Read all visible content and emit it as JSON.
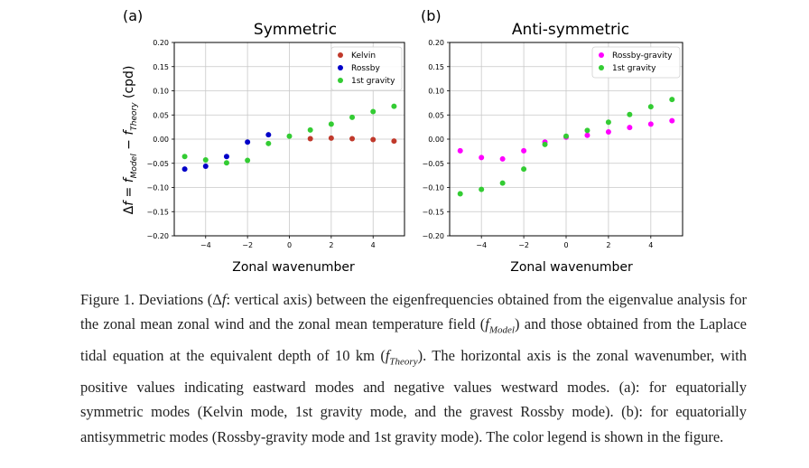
{
  "chart_data": [
    {
      "type": "scatter",
      "panel": "(a)",
      "title": "Symmetric",
      "xlabel": "Zonal wavenumber",
      "ylabel": "Δf = f_Model − f_Theory (cpd)",
      "xlim": [
        -5.5,
        5.5
      ],
      "ylim": [
        -0.2,
        0.2
      ],
      "xticks": [
        -4,
        -2,
        0,
        2,
        4
      ],
      "yticks": [
        0.2,
        0.15,
        0.1,
        0.05,
        0.0,
        -0.05,
        -0.1,
        -0.15,
        -0.2
      ],
      "ytick_labels": [
        "0.20",
        "0.15",
        "0.10",
        "0.05",
        "0.00",
        "−0.05",
        "−0.10",
        "−0.15",
        "−0.20"
      ],
      "grid": true,
      "legend_position": "top-right",
      "series": [
        {
          "name": "Kelvin",
          "color": "#c0392b",
          "x": [
            1,
            2,
            3,
            4,
            5
          ],
          "y": [
            0.001,
            0.002,
            0.001,
            -0.001,
            -0.004
          ]
        },
        {
          "name": "Rossby",
          "color": "#0000c8",
          "x": [
            -5,
            -4,
            -3,
            -2,
            -1
          ],
          "y": [
            -0.062,
            -0.056,
            -0.036,
            -0.006,
            0.009
          ]
        },
        {
          "name": "1st gravity",
          "color": "#33cc33",
          "x": [
            -5,
            -4,
            -3,
            -2,
            -1,
            0,
            1,
            2,
            3,
            4,
            5
          ],
          "y": [
            -0.036,
            -0.043,
            -0.049,
            -0.044,
            -0.009,
            0.006,
            0.019,
            0.031,
            0.045,
            0.057,
            0.068
          ]
        }
      ]
    },
    {
      "type": "scatter",
      "panel": "(b)",
      "title": "Anti-symmetric",
      "xlabel": "Zonal wavenumber",
      "xlim": [
        -5.5,
        5.5
      ],
      "ylim": [
        -0.2,
        0.2
      ],
      "xticks": [
        -4,
        -2,
        0,
        2,
        4
      ],
      "yticks": [
        0.2,
        0.15,
        0.1,
        0.05,
        0.0,
        -0.05,
        -0.1,
        -0.15,
        -0.2
      ],
      "ytick_labels": [
        "0.20",
        "0.15",
        "0.10",
        "0.05",
        "0.00",
        "−0.05",
        "−0.10",
        "−0.15",
        "−0.20"
      ],
      "grid": true,
      "legend_position": "top-right",
      "series": [
        {
          "name": "Rossby-gravity",
          "color": "#ff00ff",
          "x": [
            -5,
            -4,
            -3,
            -2,
            -1,
            0,
            1,
            2,
            3,
            4,
            5
          ],
          "y": [
            -0.024,
            -0.038,
            -0.041,
            -0.024,
            -0.006,
            0.004,
            0.008,
            0.015,
            0.024,
            0.031,
            0.038
          ]
        },
        {
          "name": "1st gravity",
          "color": "#33cc33",
          "x": [
            -5,
            -4,
            -3,
            -2,
            -1,
            0,
            1,
            2,
            3,
            4,
            5
          ],
          "y": [
            -0.113,
            -0.104,
            -0.091,
            -0.062,
            -0.011,
            0.006,
            0.018,
            0.035,
            0.051,
            0.067,
            0.082
          ]
        }
      ]
    }
  ],
  "caption": {
    "prefix": "Figure 1. Deviations (Δ",
    "f1": "f",
    "seg1": ": vertical axis) between the eigenfrequencies obtained from the eigenvalue analysis for the zonal mean zonal wind and the zonal mean temperature field (",
    "f2": "f",
    "sub_model": "Model",
    "seg2": ") and those obtained from the Laplace tidal equation at the equivalent depth of 10 km (",
    "f3": "f",
    "sub_theory": "Theory",
    "seg3": "). The horizontal axis is the zonal wavenumber, with positive values indicating eastward modes and negative values westward modes. (a): for equatorially symmetric modes (Kelvin mode, 1st gravity mode, and the gravest Rossby mode). (b): for equatorially antisymmetric modes (Rossby-gravity mode and 1st gravity mode). The color legend is shown in the figure."
  }
}
